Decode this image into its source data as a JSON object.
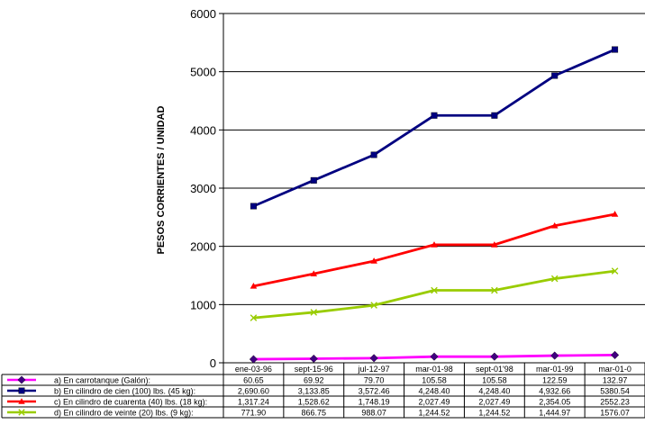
{
  "chart_data": {
    "type": "line",
    "title": "",
    "xlabel": "",
    "ylabel": "PESOS CORRIENTES / UNIDAD",
    "ylim": [
      0,
      6000
    ],
    "yticks": [
      0,
      1000,
      2000,
      3000,
      4000,
      5000,
      6000
    ],
    "grid": true,
    "legend": "data-table-below",
    "categories": [
      "ene-03-96",
      "sept-15-96",
      "jul-12-97",
      "mar-01-98",
      "sept-01'98",
      "mar-01-99",
      "mar-01-0"
    ],
    "series": [
      {
        "name": "a) En carrotanque (Galón):",
        "color": "#ff00ff",
        "marker": "diamond",
        "values": [
          60.65,
          69.92,
          79.7,
          105.58,
          105.58,
          122.59,
          132.97
        ],
        "labels": [
          "60.65",
          "69.92",
          "79.70",
          "105.58",
          "105.58",
          "122.59",
          "132.97"
        ]
      },
      {
        "name": "b) En cilindro de cien (100) lbs. (45 kg):",
        "color": "#000080",
        "marker": "square",
        "values": [
          2690.6,
          3133.85,
          3572.46,
          4248.4,
          4248.4,
          4932.66,
          5380.54
        ],
        "labels": [
          "2,690.60",
          "3,133.85",
          "3,572.46",
          "4,248.40",
          "4,248.40",
          "4,932.66",
          "5380.54"
        ]
      },
      {
        "name": "c) En cilindro de cuarenta (40) lbs. (18 kg):",
        "color": "#ff0000",
        "marker": "triangle",
        "values": [
          1317.24,
          1528.62,
          1748.19,
          2027.49,
          2027.49,
          2354.05,
          2552.23
        ],
        "labels": [
          "1,317.24",
          "1,528.62",
          "1,748.19",
          "2,027.49",
          "2,027.49",
          "2,354.05",
          "2552.23"
        ]
      },
      {
        "name": "d) En cilindro de veinte (20) lbs. (9 kg):",
        "color": "#99cc00",
        "marker": "x",
        "values": [
          771.9,
          866.75,
          988.07,
          1244.52,
          1244.52,
          1444.97,
          1576.07
        ],
        "labels": [
          "771.90",
          "866.75",
          "988.07",
          "1,244.52",
          "1,244.52",
          "1,444.97",
          "1576.07"
        ]
      }
    ]
  }
}
